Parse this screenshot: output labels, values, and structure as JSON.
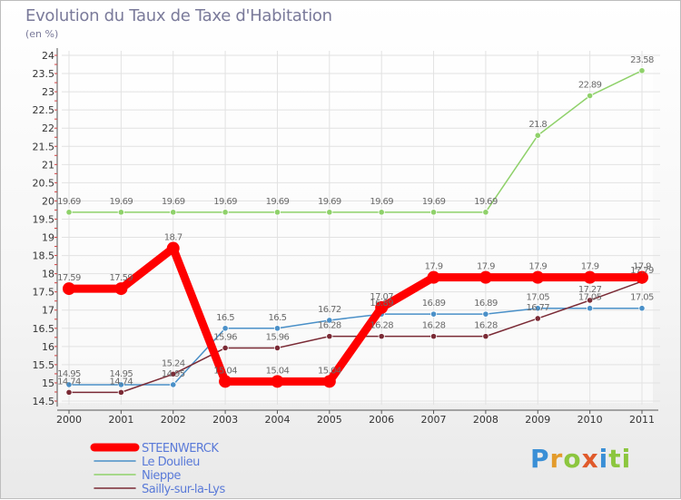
{
  "title": "Evolution du Taux de Taxe d'Habitation",
  "subtitle": "(en %)",
  "logo_text": "Proxiti",
  "chart_data": {
    "type": "line",
    "title": "Evolution du Taux de Taxe d'Habitation",
    "subtitle": "(en %)",
    "xlabel": "",
    "ylabel": "",
    "x": [
      "2000",
      "2001",
      "2002",
      "2003",
      "2004",
      "2005",
      "2006",
      "2007",
      "2008",
      "2009",
      "2010",
      "2011"
    ],
    "ylim": [
      14.5,
      24
    ],
    "yticks": [
      "14.5",
      "15",
      "15.5",
      "16",
      "16.5",
      "17",
      "17.5",
      "18",
      "18.5",
      "19",
      "19.5",
      "20",
      "20.5",
      "21",
      "21.5",
      "22",
      "22.5",
      "23",
      "23.5",
      "24"
    ],
    "grid": true,
    "legend_position": "bottom-left",
    "series": [
      {
        "name": "STEENWERCK",
        "color": "#ff0000",
        "bold": true,
        "values": [
          17.59,
          17.59,
          18.7,
          15.04,
          15.04,
          15.04,
          17.07,
          17.9,
          17.9,
          17.9,
          17.9,
          17.9
        ],
        "labels": [
          "17.59",
          "17.59",
          "18.7",
          "15.04",
          "15.04",
          "15.04",
          "17.07",
          "17.9",
          "17.9",
          "17.9",
          "17.9",
          "17.9"
        ]
      },
      {
        "name": "Le Doulieu",
        "color": "#4a90c8",
        "values": [
          14.95,
          14.95,
          14.95,
          16.5,
          16.5,
          16.72,
          16.89,
          16.89,
          16.89,
          17.05,
          17.05,
          17.05
        ],
        "labels": [
          "14.95",
          "14.95",
          "14.95",
          "16.5",
          "16.5",
          "16.72",
          "16.89",
          "16.89",
          "16.89",
          "17.05",
          "17.05",
          "17.05"
        ]
      },
      {
        "name": "Nieppe",
        "color": "#8fd16a",
        "values": [
          19.69,
          19.69,
          19.69,
          19.69,
          19.69,
          19.69,
          19.69,
          19.69,
          19.69,
          21.8,
          22.89,
          23.58
        ],
        "labels": [
          "19.69",
          "19.69",
          "19.69",
          "19.69",
          "19.69",
          "19.69",
          "19.69",
          "19.69",
          "19.69",
          "21.8",
          "22.89",
          "23.58"
        ]
      },
      {
        "name": "Sailly-sur-la-Lys",
        "color": "#7a2a35",
        "values": [
          14.74,
          14.74,
          15.24,
          15.96,
          15.96,
          16.28,
          16.28,
          16.28,
          16.28,
          16.77,
          17.27,
          17.79
        ],
        "labels": [
          "14.74",
          "14.74",
          "15.24",
          "15.96",
          "15.96",
          "16.28",
          "16.28",
          "16.28",
          "16.28",
          "16.77",
          "17.27",
          "17.79"
        ]
      }
    ]
  }
}
